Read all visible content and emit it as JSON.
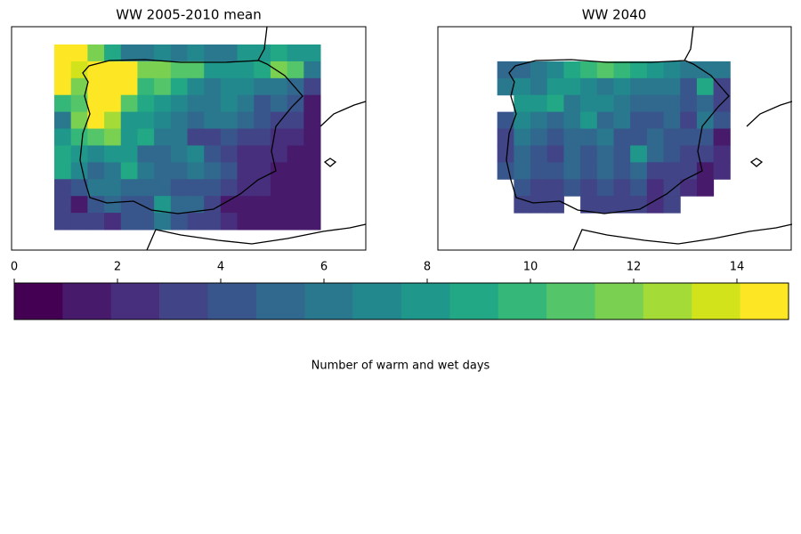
{
  "chart_data": {
    "type": "heatmap",
    "panels": [
      {
        "title": "WW 2005-2010 mean",
        "z": [
          [
            15,
            15,
            12,
            9,
            6,
            6,
            7,
            6,
            7,
            6,
            6,
            8,
            8,
            9,
            8,
            8
          ],
          [
            15,
            14,
            15,
            15,
            15,
            12,
            12,
            11,
            11,
            8,
            8,
            8,
            9,
            12,
            11,
            6
          ],
          [
            15,
            12,
            15,
            15,
            15,
            10,
            11,
            9,
            7,
            6,
            7,
            7,
            6,
            6,
            5,
            3
          ],
          [
            10,
            11,
            15,
            15,
            11,
            9,
            8,
            7,
            6,
            6,
            7,
            6,
            4,
            5,
            4,
            1
          ],
          [
            6,
            12,
            15,
            13,
            8,
            8,
            7,
            6,
            5,
            6,
            6,
            5,
            4,
            3,
            3,
            1
          ],
          [
            8,
            10,
            11,
            12,
            8,
            9,
            6,
            6,
            3,
            3,
            4,
            3,
            3,
            2,
            2,
            1
          ],
          [
            9,
            8,
            7,
            8,
            8,
            5,
            5,
            6,
            7,
            4,
            3,
            2,
            2,
            2,
            1,
            1
          ],
          [
            9,
            7,
            5,
            6,
            9,
            6,
            5,
            5,
            6,
            5,
            4,
            2,
            2,
            1,
            1,
            1
          ],
          [
            3,
            4,
            6,
            6,
            5,
            5,
            5,
            4,
            4,
            4,
            3,
            2,
            2,
            1,
            1,
            1
          ],
          [
            3,
            1,
            4,
            5,
            4,
            4,
            8,
            5,
            5,
            3,
            1,
            1,
            1,
            1,
            1,
            1
          ],
          [
            3,
            3,
            3,
            2,
            4,
            4,
            6,
            4,
            3,
            3,
            2,
            1,
            1,
            1,
            1,
            1
          ]
        ]
      },
      {
        "title": "WW 2040",
        "z": [
          [
            null,
            null,
            null,
            null,
            null,
            null,
            null,
            null,
            null,
            null,
            null,
            null,
            null,
            null,
            null,
            null
          ],
          [
            null,
            5,
            5,
            6,
            7,
            9,
            10,
            11,
            10,
            9,
            8,
            7,
            6,
            6,
            6,
            null
          ],
          [
            null,
            6,
            7,
            6,
            8,
            8,
            7,
            6,
            7,
            6,
            6,
            6,
            4,
            9,
            3,
            null
          ],
          [
            null,
            null,
            8,
            8,
            9,
            6,
            7,
            7,
            6,
            5,
            5,
            5,
            4,
            5,
            3,
            null
          ],
          [
            null,
            4,
            7,
            6,
            5,
            6,
            8,
            5,
            6,
            4,
            4,
            5,
            3,
            6,
            4,
            null
          ],
          [
            null,
            3,
            6,
            5,
            4,
            5,
            5,
            6,
            4,
            4,
            5,
            4,
            4,
            4,
            1,
            null
          ],
          [
            null,
            3,
            5,
            4,
            3,
            5,
            4,
            5,
            4,
            8,
            5,
            4,
            3,
            3,
            2,
            null
          ],
          [
            null,
            4,
            5,
            4,
            4,
            5,
            4,
            5,
            4,
            5,
            3,
            3,
            3,
            1,
            2,
            null
          ],
          [
            null,
            null,
            4,
            3,
            3,
            4,
            3,
            4,
            3,
            4,
            2,
            3,
            2,
            1,
            null,
            null
          ],
          [
            null,
            null,
            3,
            3,
            3,
            null,
            3,
            3,
            3,
            3,
            2,
            3,
            null,
            null,
            null,
            null
          ],
          [
            null,
            null,
            null,
            null,
            null,
            null,
            null,
            null,
            null,
            null,
            null,
            null,
            null,
            null,
            null,
            null
          ]
        ]
      }
    ],
    "colorbar": {
      "label": "Number of warm and wet days",
      "lim": [
        0,
        15
      ],
      "ticks": [
        0,
        2,
        4,
        6,
        8,
        10,
        12,
        14
      ],
      "colors": [
        "#440154",
        "#481a6c",
        "#472f7d",
        "#414487",
        "#39568c",
        "#31688e",
        "#2a788e",
        "#23888e",
        "#1f988b",
        "#22a884",
        "#35b779",
        "#54c568",
        "#7ad151",
        "#a5db36",
        "#d2e21b",
        "#fde725"
      ]
    }
  }
}
